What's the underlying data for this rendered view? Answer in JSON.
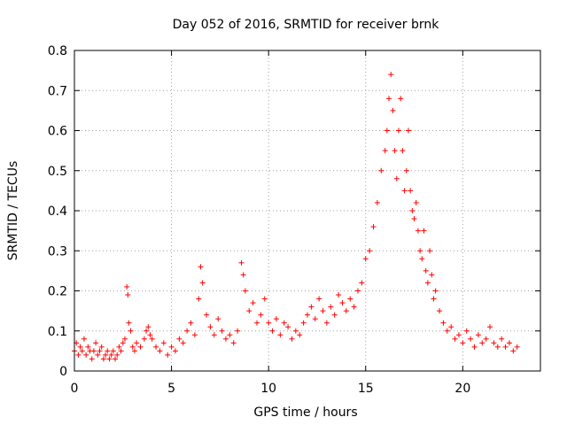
{
  "chart_data": {
    "type": "scatter",
    "title": "Day 052 of 2016, SRMTID for receiver brnk",
    "xlabel": "GPS time / hours",
    "ylabel": "SRMTID / TECUs",
    "xlim": [
      0,
      24
    ],
    "ylim": [
      0,
      0.8
    ],
    "x_ticks": [
      "0",
      "5",
      "10",
      "15",
      "20"
    ],
    "y_ticks": [
      "0",
      "0.1",
      "0.2",
      "0.3",
      "0.4",
      "0.5",
      "0.6",
      "0.7",
      "0.8"
    ],
    "grid": true,
    "marker": "plus",
    "color": "#ff0000",
    "series": [
      {
        "name": "SRMTID",
        "points": [
          [
            0.0,
            0.05
          ],
          [
            0.1,
            0.07
          ],
          [
            0.2,
            0.04
          ],
          [
            0.3,
            0.06
          ],
          [
            0.4,
            0.05
          ],
          [
            0.5,
            0.08
          ],
          [
            0.6,
            0.04
          ],
          [
            0.7,
            0.06
          ],
          [
            0.8,
            0.05
          ],
          [
            0.9,
            0.03
          ],
          [
            1.0,
            0.05
          ],
          [
            1.1,
            0.07
          ],
          [
            1.2,
            0.04
          ],
          [
            1.3,
            0.05
          ],
          [
            1.4,
            0.06
          ],
          [
            1.5,
            0.03
          ],
          [
            1.6,
            0.04
          ],
          [
            1.7,
            0.05
          ],
          [
            1.8,
            0.03
          ],
          [
            1.9,
            0.04
          ],
          [
            2.0,
            0.05
          ],
          [
            2.1,
            0.03
          ],
          [
            2.2,
            0.04
          ],
          [
            2.3,
            0.06
          ],
          [
            2.4,
            0.05
          ],
          [
            2.5,
            0.07
          ],
          [
            2.6,
            0.08
          ],
          [
            2.7,
            0.21
          ],
          [
            2.75,
            0.19
          ],
          [
            2.8,
            0.12
          ],
          [
            2.9,
            0.1
          ],
          [
            3.0,
            0.06
          ],
          [
            3.1,
            0.05
          ],
          [
            3.2,
            0.07
          ],
          [
            3.4,
            0.06
          ],
          [
            3.6,
            0.08
          ],
          [
            3.7,
            0.1
          ],
          [
            3.8,
            0.11
          ],
          [
            3.9,
            0.09
          ],
          [
            4.0,
            0.08
          ],
          [
            4.2,
            0.06
          ],
          [
            4.4,
            0.05
          ],
          [
            4.6,
            0.07
          ],
          [
            4.8,
            0.04
          ],
          [
            5.0,
            0.06
          ],
          [
            5.2,
            0.05
          ],
          [
            5.4,
            0.08
          ],
          [
            5.6,
            0.07
          ],
          [
            5.8,
            0.1
          ],
          [
            6.0,
            0.12
          ],
          [
            6.2,
            0.09
          ],
          [
            6.4,
            0.18
          ],
          [
            6.5,
            0.26
          ],
          [
            6.6,
            0.22
          ],
          [
            6.8,
            0.14
          ],
          [
            7.0,
            0.11
          ],
          [
            7.2,
            0.09
          ],
          [
            7.4,
            0.13
          ],
          [
            7.6,
            0.1
          ],
          [
            7.8,
            0.08
          ],
          [
            8.0,
            0.09
          ],
          [
            8.2,
            0.07
          ],
          [
            8.4,
            0.1
          ],
          [
            8.6,
            0.27
          ],
          [
            8.7,
            0.24
          ],
          [
            8.8,
            0.2
          ],
          [
            9.0,
            0.15
          ],
          [
            9.2,
            0.17
          ],
          [
            9.4,
            0.12
          ],
          [
            9.6,
            0.14
          ],
          [
            9.8,
            0.18
          ],
          [
            10.0,
            0.12
          ],
          [
            10.2,
            0.1
          ],
          [
            10.4,
            0.13
          ],
          [
            10.6,
            0.09
          ],
          [
            10.8,
            0.12
          ],
          [
            11.0,
            0.11
          ],
          [
            11.2,
            0.08
          ],
          [
            11.4,
            0.1
          ],
          [
            11.6,
            0.09
          ],
          [
            11.8,
            0.12
          ],
          [
            12.0,
            0.14
          ],
          [
            12.2,
            0.16
          ],
          [
            12.4,
            0.13
          ],
          [
            12.6,
            0.18
          ],
          [
            12.8,
            0.15
          ],
          [
            13.0,
            0.12
          ],
          [
            13.2,
            0.16
          ],
          [
            13.4,
            0.14
          ],
          [
            13.6,
            0.19
          ],
          [
            13.8,
            0.17
          ],
          [
            14.0,
            0.15
          ],
          [
            14.2,
            0.18
          ],
          [
            14.4,
            0.16
          ],
          [
            14.6,
            0.2
          ],
          [
            14.8,
            0.22
          ],
          [
            15.0,
            0.28
          ],
          [
            15.2,
            0.3
          ],
          [
            15.4,
            0.36
          ],
          [
            15.6,
            0.42
          ],
          [
            15.8,
            0.5
          ],
          [
            16.0,
            0.55
          ],
          [
            16.1,
            0.6
          ],
          [
            16.2,
            0.68
          ],
          [
            16.3,
            0.74
          ],
          [
            16.4,
            0.65
          ],
          [
            16.5,
            0.55
          ],
          [
            16.6,
            0.48
          ],
          [
            16.7,
            0.6
          ],
          [
            16.8,
            0.68
          ],
          [
            16.9,
            0.55
          ],
          [
            17.0,
            0.45
          ],
          [
            17.1,
            0.5
          ],
          [
            17.2,
            0.6
          ],
          [
            17.3,
            0.45
          ],
          [
            17.4,
            0.4
          ],
          [
            17.5,
            0.38
          ],
          [
            17.6,
            0.42
          ],
          [
            17.7,
            0.35
          ],
          [
            17.8,
            0.3
          ],
          [
            17.9,
            0.28
          ],
          [
            18.0,
            0.35
          ],
          [
            18.1,
            0.25
          ],
          [
            18.2,
            0.22
          ],
          [
            18.3,
            0.3
          ],
          [
            18.4,
            0.24
          ],
          [
            18.5,
            0.18
          ],
          [
            18.6,
            0.2
          ],
          [
            18.8,
            0.15
          ],
          [
            19.0,
            0.12
          ],
          [
            19.2,
            0.1
          ],
          [
            19.4,
            0.11
          ],
          [
            19.6,
            0.08
          ],
          [
            19.8,
            0.09
          ],
          [
            20.0,
            0.07
          ],
          [
            20.2,
            0.1
          ],
          [
            20.4,
            0.08
          ],
          [
            20.6,
            0.06
          ],
          [
            20.8,
            0.09
          ],
          [
            21.0,
            0.07
          ],
          [
            21.2,
            0.08
          ],
          [
            21.4,
            0.11
          ],
          [
            21.6,
            0.07
          ],
          [
            21.8,
            0.06
          ],
          [
            22.0,
            0.08
          ],
          [
            22.2,
            0.06
          ],
          [
            22.4,
            0.07
          ],
          [
            22.6,
            0.05
          ],
          [
            22.8,
            0.06
          ]
        ]
      }
    ]
  }
}
